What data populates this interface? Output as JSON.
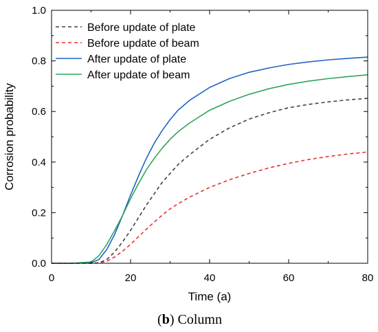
{
  "chart_data": {
    "type": "line",
    "xlabel": "Time (a)",
    "ylabel": "Corrosion probability",
    "xlim": [
      0,
      80
    ],
    "ylim": [
      0,
      1.0
    ],
    "x_ticks": [
      "0",
      "20",
      "40",
      "60",
      "80"
    ],
    "y_ticks": [
      "0.0",
      "0.2",
      "0.4",
      "0.6",
      "0.8",
      "1.0"
    ],
    "x_tick_values": [
      0,
      20,
      40,
      60,
      80
    ],
    "y_tick_values": [
      0,
      0.2,
      0.4,
      0.6,
      0.8,
      1.0
    ],
    "legend_position": "top-left",
    "grid": false,
    "x": [
      0,
      5,
      10,
      12,
      14,
      16,
      18,
      20,
      22,
      24,
      26,
      28,
      30,
      32,
      35,
      40,
      45,
      50,
      55,
      60,
      65,
      70,
      75,
      80
    ],
    "series": [
      {
        "name": "Before update of plate",
        "color": "#404040",
        "style": "dashed",
        "values": [
          0,
          0,
          0,
          0.002,
          0.015,
          0.045,
          0.085,
          0.13,
          0.18,
          0.23,
          0.275,
          0.32,
          0.355,
          0.39,
          0.43,
          0.49,
          0.535,
          0.57,
          0.595,
          0.615,
          0.628,
          0.638,
          0.646,
          0.652
        ]
      },
      {
        "name": "Before update of beam",
        "color": "#e8322b",
        "style": "dashed",
        "values": [
          0,
          0,
          0,
          0.001,
          0.008,
          0.025,
          0.048,
          0.075,
          0.105,
          0.135,
          0.163,
          0.19,
          0.215,
          0.235,
          0.262,
          0.3,
          0.33,
          0.355,
          0.377,
          0.395,
          0.41,
          0.422,
          0.432,
          0.44
        ]
      },
      {
        "name": "After update of plate",
        "color": "#1f63c6",
        "style": "solid",
        "values": [
          0,
          0,
          0.002,
          0.015,
          0.055,
          0.115,
          0.19,
          0.27,
          0.345,
          0.415,
          0.475,
          0.525,
          0.568,
          0.605,
          0.645,
          0.695,
          0.73,
          0.755,
          0.772,
          0.786,
          0.796,
          0.804,
          0.81,
          0.815
        ]
      },
      {
        "name": "After update of beam",
        "color": "#2ca55a",
        "style": "solid",
        "values": [
          0,
          0,
          0.005,
          0.03,
          0.075,
          0.13,
          0.19,
          0.255,
          0.315,
          0.37,
          0.415,
          0.455,
          0.49,
          0.52,
          0.555,
          0.605,
          0.64,
          0.668,
          0.69,
          0.707,
          0.72,
          0.73,
          0.738,
          0.745
        ]
      }
    ]
  },
  "caption": {
    "label": "b",
    "open": "(",
    "close": ")",
    "text": " Column"
  }
}
